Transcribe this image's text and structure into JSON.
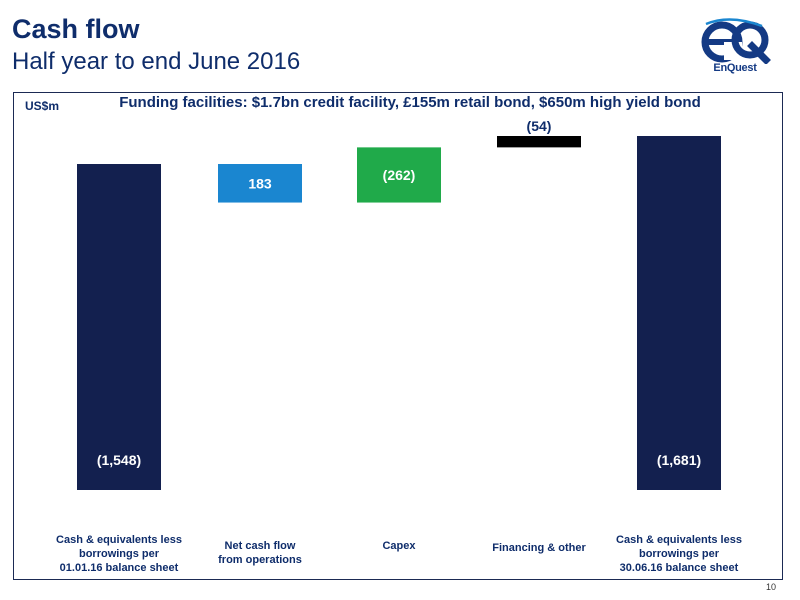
{
  "header": {
    "title": "Cash flow",
    "subtitle": "Half year to end June 2016",
    "logo": {
      "wordmark": "EnQuest",
      "monogram": "eQ",
      "icon": "enquest-logo",
      "color": "#143a84"
    }
  },
  "panel": {
    "units": "US$m",
    "heading": "Funding facilities: $1.7bn credit facility, £155m retail bond, $650m high yield bond"
  },
  "chart_data": {
    "type": "bar",
    "subtype": "waterfall",
    "categories": [
      [
        "Cash & equivalents less",
        "borrowings per",
        "01.01.16 balance sheet"
      ],
      [
        "Net cash flow",
        "from operations"
      ],
      [
        "Capex"
      ],
      [
        "Financing & other"
      ],
      [
        "Cash & equivalents less",
        "borrowings per",
        "30.06.16 balance sheet"
      ]
    ],
    "values": [
      -1548,
      183,
      -262,
      -54,
      -1681
    ],
    "data_labels": [
      "(1,548)",
      "183",
      "(262)",
      "(54)",
      "(1,681)"
    ],
    "bar_roles": [
      "total",
      "change",
      "change",
      "change",
      "total"
    ],
    "colors": [
      "#13204f",
      "#1a86d0",
      "#20aa4a",
      "#000000",
      "#13204f"
    ],
    "label_colors": [
      "#ffffff",
      "#ffffff",
      "#ffffff",
      "#0f2d6b",
      "#ffffff"
    ],
    "grid": false,
    "legend": "none"
  },
  "footer": {
    "page_number": "10"
  }
}
